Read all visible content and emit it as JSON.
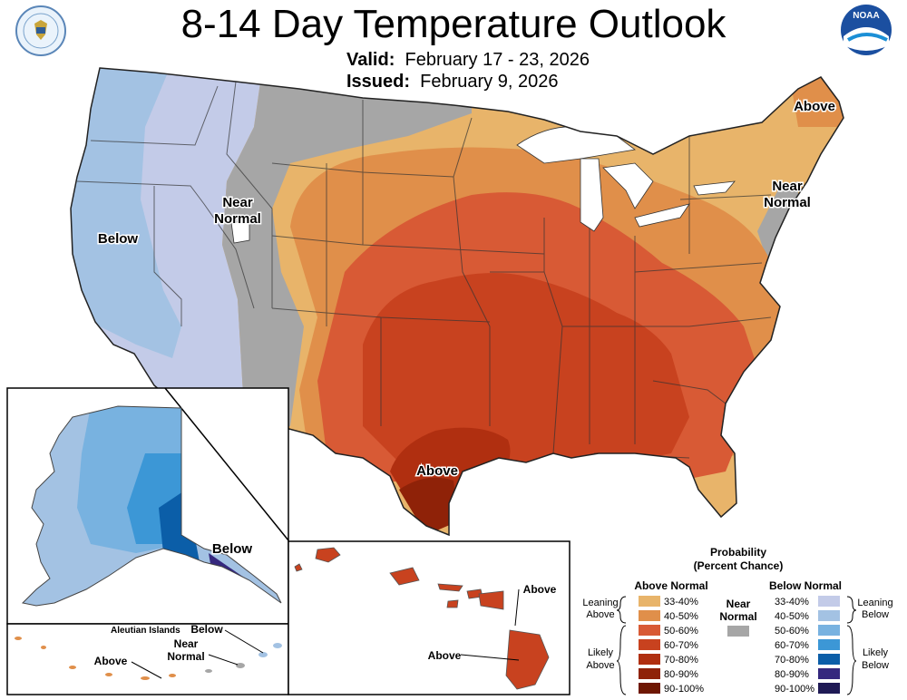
{
  "title": "8-14 Day Temperature Outlook",
  "valid": {
    "label": "Valid:",
    "dates": "February 17 - 23, 2026"
  },
  "issued": {
    "label": "Issued:",
    "dates": "February 9, 2026"
  },
  "logos": {
    "left": "us-department-of-commerce-seal",
    "right": "noaa-logo",
    "noaa_text": "NOAA"
  },
  "conus_labels": {
    "below": "Below",
    "near_normal_west_1": "Near",
    "near_normal_west_2": "Normal",
    "near_normal_east_1": "Near",
    "near_normal_east_2": "Normal",
    "above_maine": "Above",
    "above_texas": "Above"
  },
  "alaska_labels": {
    "below": "Below"
  },
  "aleutian_labels": {
    "title": "Aleutian Islands",
    "below": "Below",
    "near_1": "Near",
    "near_2": "Normal",
    "above": "Above"
  },
  "hawaii_labels": {
    "above_1": "Above",
    "above_2": "Above"
  },
  "legend": {
    "title_1": "Probability",
    "title_2": "(Percent Chance)",
    "above_header": "Above Normal",
    "below_header": "Below Normal",
    "near_1": "Near",
    "near_2": "Normal",
    "leaning_above_1": "Leaning",
    "leaning_above_2": "Above",
    "likely_above_1": "Likely",
    "likely_above_2": "Above",
    "leaning_below_1": "Leaning",
    "leaning_below_2": "Below",
    "likely_below_1": "Likely",
    "likely_below_2": "Below",
    "ranges": [
      "33-40%",
      "40-50%",
      "50-60%",
      "60-70%",
      "70-80%",
      "80-90%",
      "90-100%"
    ],
    "above_colors": [
      "#e8b46a",
      "#e08f4a",
      "#d85a35",
      "#c8421f",
      "#b02f10",
      "#8f2208",
      "#6e1703"
    ],
    "below_colors": [
      "#c3cbe8",
      "#a3c2e3",
      "#78b2e0",
      "#3c97d6",
      "#0b5ea8",
      "#35287e",
      "#1f1a55"
    ],
    "near_color": "#a6a6a6"
  }
}
